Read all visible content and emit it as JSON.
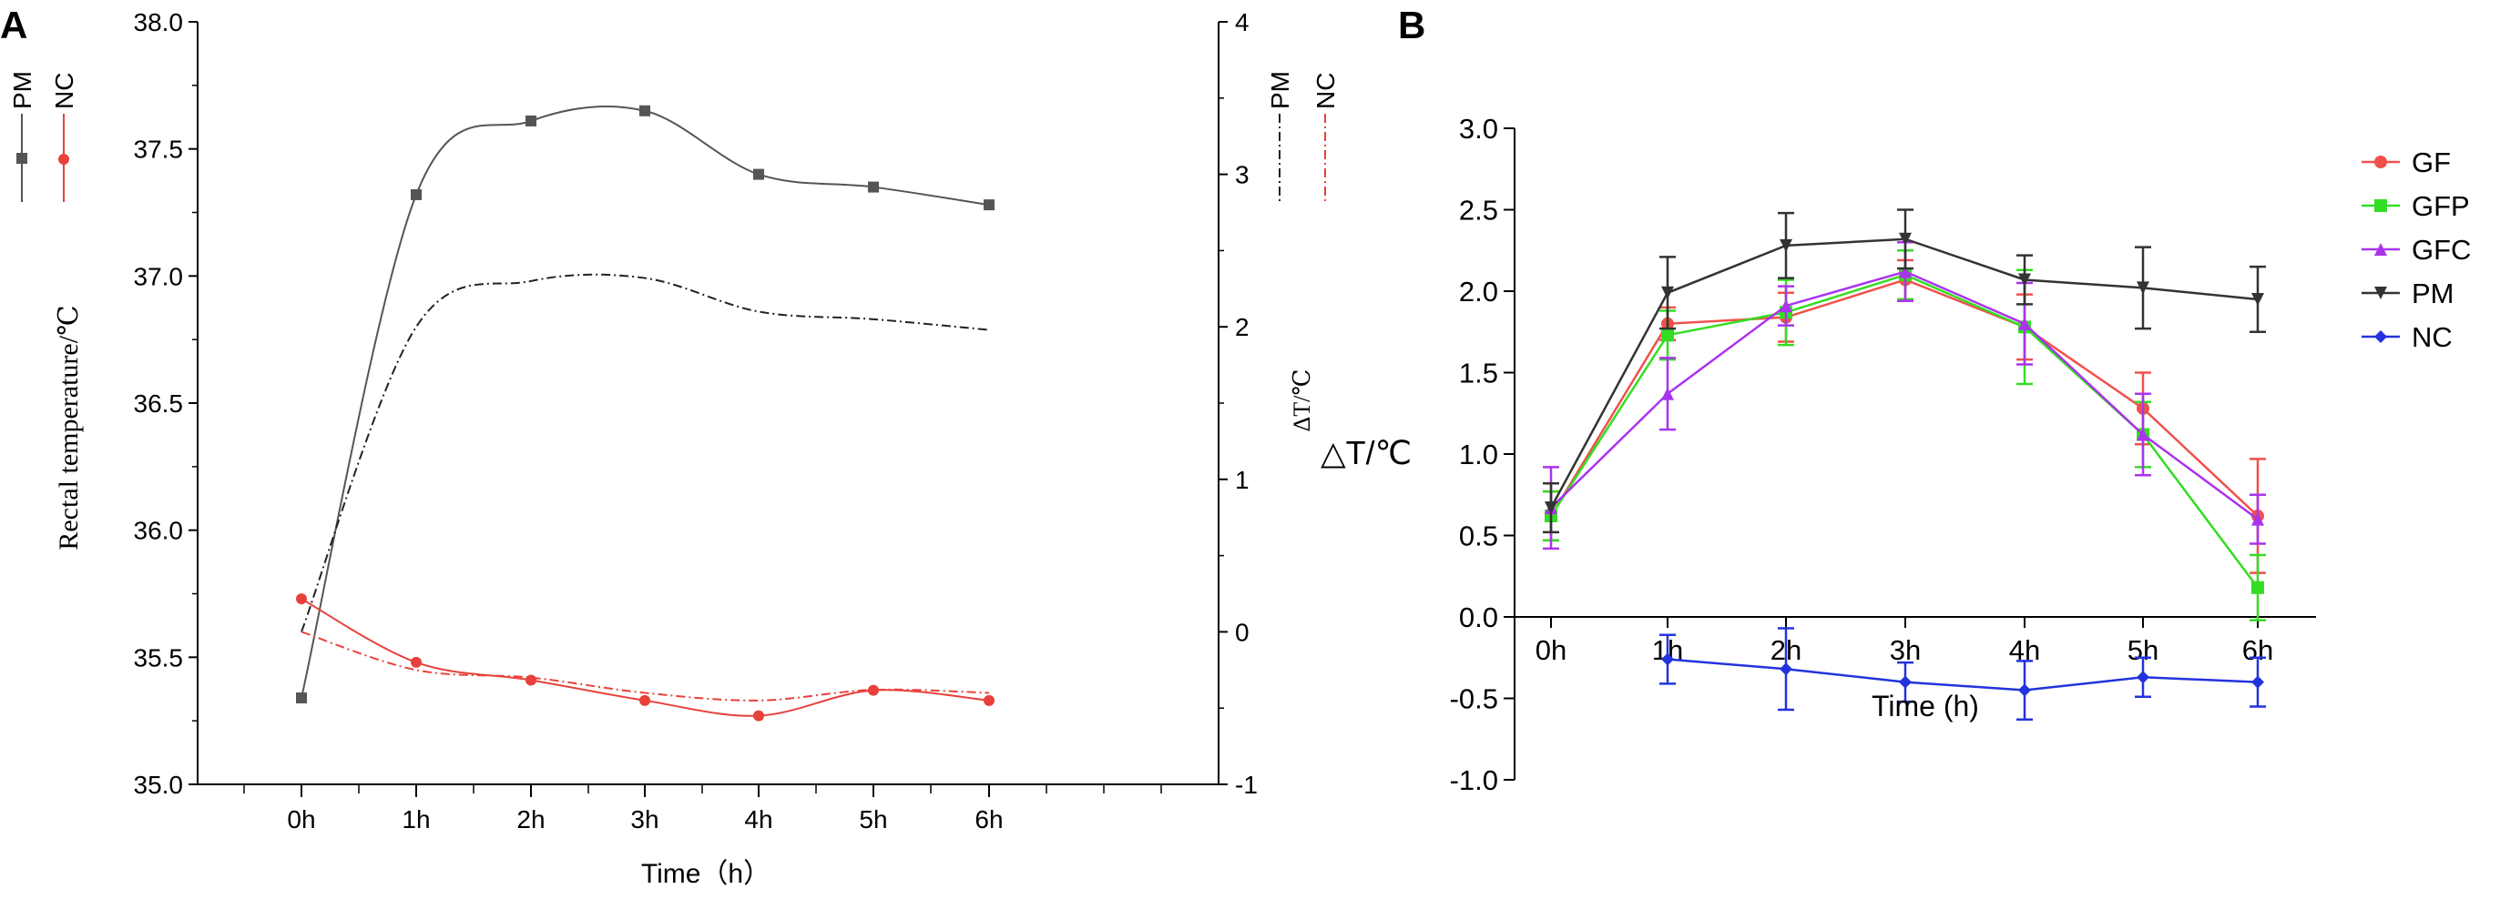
{
  "chart_data": [
    {
      "panel": "A",
      "type": "line",
      "categories": [
        "0h",
        "1h",
        "2h",
        "3h",
        "4h",
        "5h",
        "6h"
      ],
      "xlabel": "Time（h）",
      "ylabel_left": "Rectal temperature/℃",
      "ylabel_right": "ΔT/℃",
      "ylim_left": [
        35.0,
        38.0
      ],
      "yticks_left": [
        "35.0",
        "35.5",
        "36.0",
        "36.5",
        "37.0",
        "37.5",
        "38.0"
      ],
      "ylim_right": [
        -1,
        4
      ],
      "yticks_right": [
        "-1",
        "0",
        "1",
        "2",
        "3",
        "4"
      ],
      "series": [
        {
          "name": "PM",
          "axis": "left",
          "style": "solid",
          "marker": "square",
          "color": "#555555",
          "values": [
            35.34,
            37.32,
            37.61,
            37.65,
            37.4,
            37.35,
            37.28
          ]
        },
        {
          "name": "NC",
          "axis": "left",
          "style": "solid",
          "marker": "circle",
          "color": "#e8413b",
          "values": [
            35.73,
            35.48,
            35.41,
            35.33,
            35.27,
            35.37,
            35.33
          ]
        },
        {
          "name": "PM",
          "axis": "right",
          "style": "dashdot",
          "marker": "none",
          "color": "#222222",
          "values": [
            0.0,
            2.0,
            2.3,
            2.32,
            2.1,
            2.05,
            1.98
          ]
        },
        {
          "name": "NC",
          "axis": "right",
          "style": "dashdot",
          "marker": "none",
          "color": "#e8413b",
          "values": [
            0.0,
            -0.25,
            -0.3,
            -0.4,
            -0.45,
            -0.38,
            -0.4
          ]
        }
      ],
      "legend_left": [
        "PM",
        "NC"
      ],
      "legend_right": [
        "PM",
        "NC"
      ]
    },
    {
      "panel": "B",
      "type": "line",
      "categories": [
        "0h",
        "1h",
        "2h",
        "3h",
        "4h",
        "5h",
        "6h"
      ],
      "xlabel": "Time (h)",
      "ylabel": "△T/℃",
      "ylim": [
        -1.0,
        3.0
      ],
      "yticks": [
        "-1.0",
        "-0.5",
        "0.0",
        "0.5",
        "1.0",
        "1.5",
        "2.0",
        "2.5",
        "3.0"
      ],
      "series": [
        {
          "name": "GF",
          "color": "#f0504a",
          "marker": "circle",
          "values": [
            0.62,
            1.8,
            1.84,
            2.07,
            1.78,
            1.28,
            0.62
          ],
          "errors": [
            0.15,
            0.1,
            0.15,
            0.12,
            0.2,
            0.22,
            0.35
          ]
        },
        {
          "name": "GFP",
          "color": "#33dd22",
          "marker": "square",
          "values": [
            0.62,
            1.73,
            1.87,
            2.1,
            1.78,
            1.12,
            0.18
          ],
          "errors": [
            0.15,
            0.15,
            0.2,
            0.15,
            0.35,
            0.2,
            0.2
          ]
        },
        {
          "name": "GFC",
          "color": "#aa33ee",
          "marker": "triangle",
          "values": [
            0.67,
            1.37,
            1.91,
            2.12,
            1.8,
            1.12,
            0.6
          ],
          "errors": [
            0.25,
            0.22,
            0.12,
            0.18,
            0.25,
            0.25,
            0.15
          ]
        },
        {
          "name": "PM",
          "color": "#333333",
          "marker": "triangle-down",
          "values": [
            0.67,
            1.99,
            2.28,
            2.32,
            2.07,
            2.02,
            1.95
          ],
          "errors": [
            0.15,
            0.22,
            0.2,
            0.18,
            0.15,
            0.25,
            0.2
          ]
        },
        {
          "name": "NC",
          "color": "#2233dd",
          "marker": "diamond",
          "values": [
            null,
            -0.26,
            -0.32,
            -0.4,
            -0.45,
            -0.37,
            -0.4
          ],
          "errors": [
            0,
            0.15,
            0.25,
            0.12,
            0.18,
            0.12,
            0.15
          ]
        }
      ],
      "legend": [
        "GF",
        "GFP",
        "GFC",
        "PM",
        "NC"
      ]
    }
  ],
  "panel_labels": {
    "a": "A",
    "b": "B"
  },
  "colors": {
    "axis": "#000000",
    "grid": "none"
  }
}
